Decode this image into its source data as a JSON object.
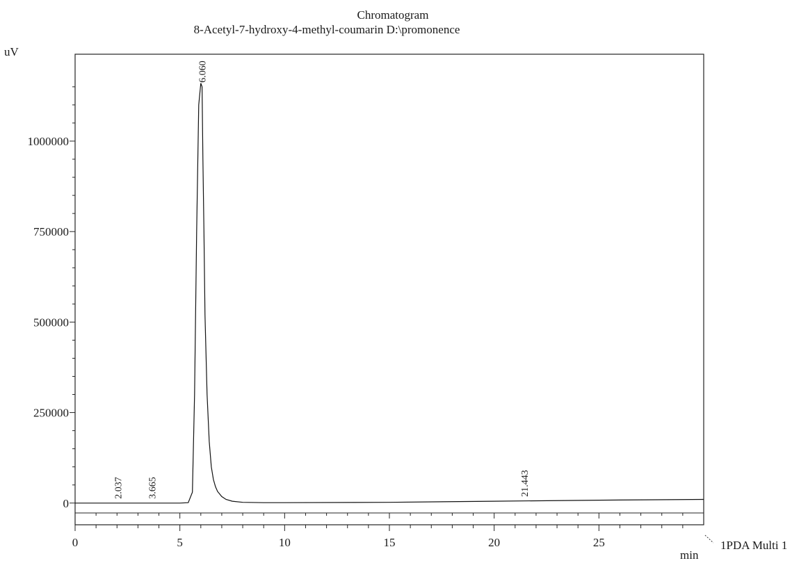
{
  "chart_data": {
    "type": "line",
    "title": "Chromatogram",
    "subtitle": "8-Acetyl-7-hydroxy-4-methyl-coumarin D:\\promonence",
    "xlabel": "min",
    "ylabel": "uV",
    "xlim": [
      0,
      30
    ],
    "ylim": [
      -60000,
      1240000
    ],
    "xticks": [
      0,
      5,
      10,
      15,
      20,
      25
    ],
    "yticks": [
      0,
      250000,
      500000,
      750000,
      1000000
    ],
    "grid": false,
    "series": [
      {
        "name": "1PDA Multi 1",
        "x": [
          0,
          2.0,
          3.0,
          4.0,
          5.0,
          5.4,
          5.6,
          5.7,
          5.8,
          5.9,
          6.0,
          6.06,
          6.1,
          6.15,
          6.2,
          6.3,
          6.4,
          6.5,
          6.6,
          6.7,
          6.8,
          7.0,
          7.2,
          7.5,
          8.0,
          9.0,
          10,
          15,
          20,
          25,
          30
        ],
        "values": [
          0,
          0,
          0,
          0,
          0,
          1000,
          30000,
          300000,
          750000,
          1100000,
          1160000,
          1150000,
          950000,
          750000,
          520000,
          300000,
          170000,
          100000,
          65000,
          45000,
          32000,
          18000,
          10000,
          5000,
          2000,
          1000,
          1000,
          2000,
          5000,
          8000,
          10000
        ]
      }
    ],
    "peak_labels": [
      {
        "x": 2.037,
        "label": "2.037"
      },
      {
        "x": 3.665,
        "label": "3.665"
      },
      {
        "x": 6.06,
        "label": "6.060"
      },
      {
        "x": 21.443,
        "label": "21.443"
      }
    ]
  }
}
